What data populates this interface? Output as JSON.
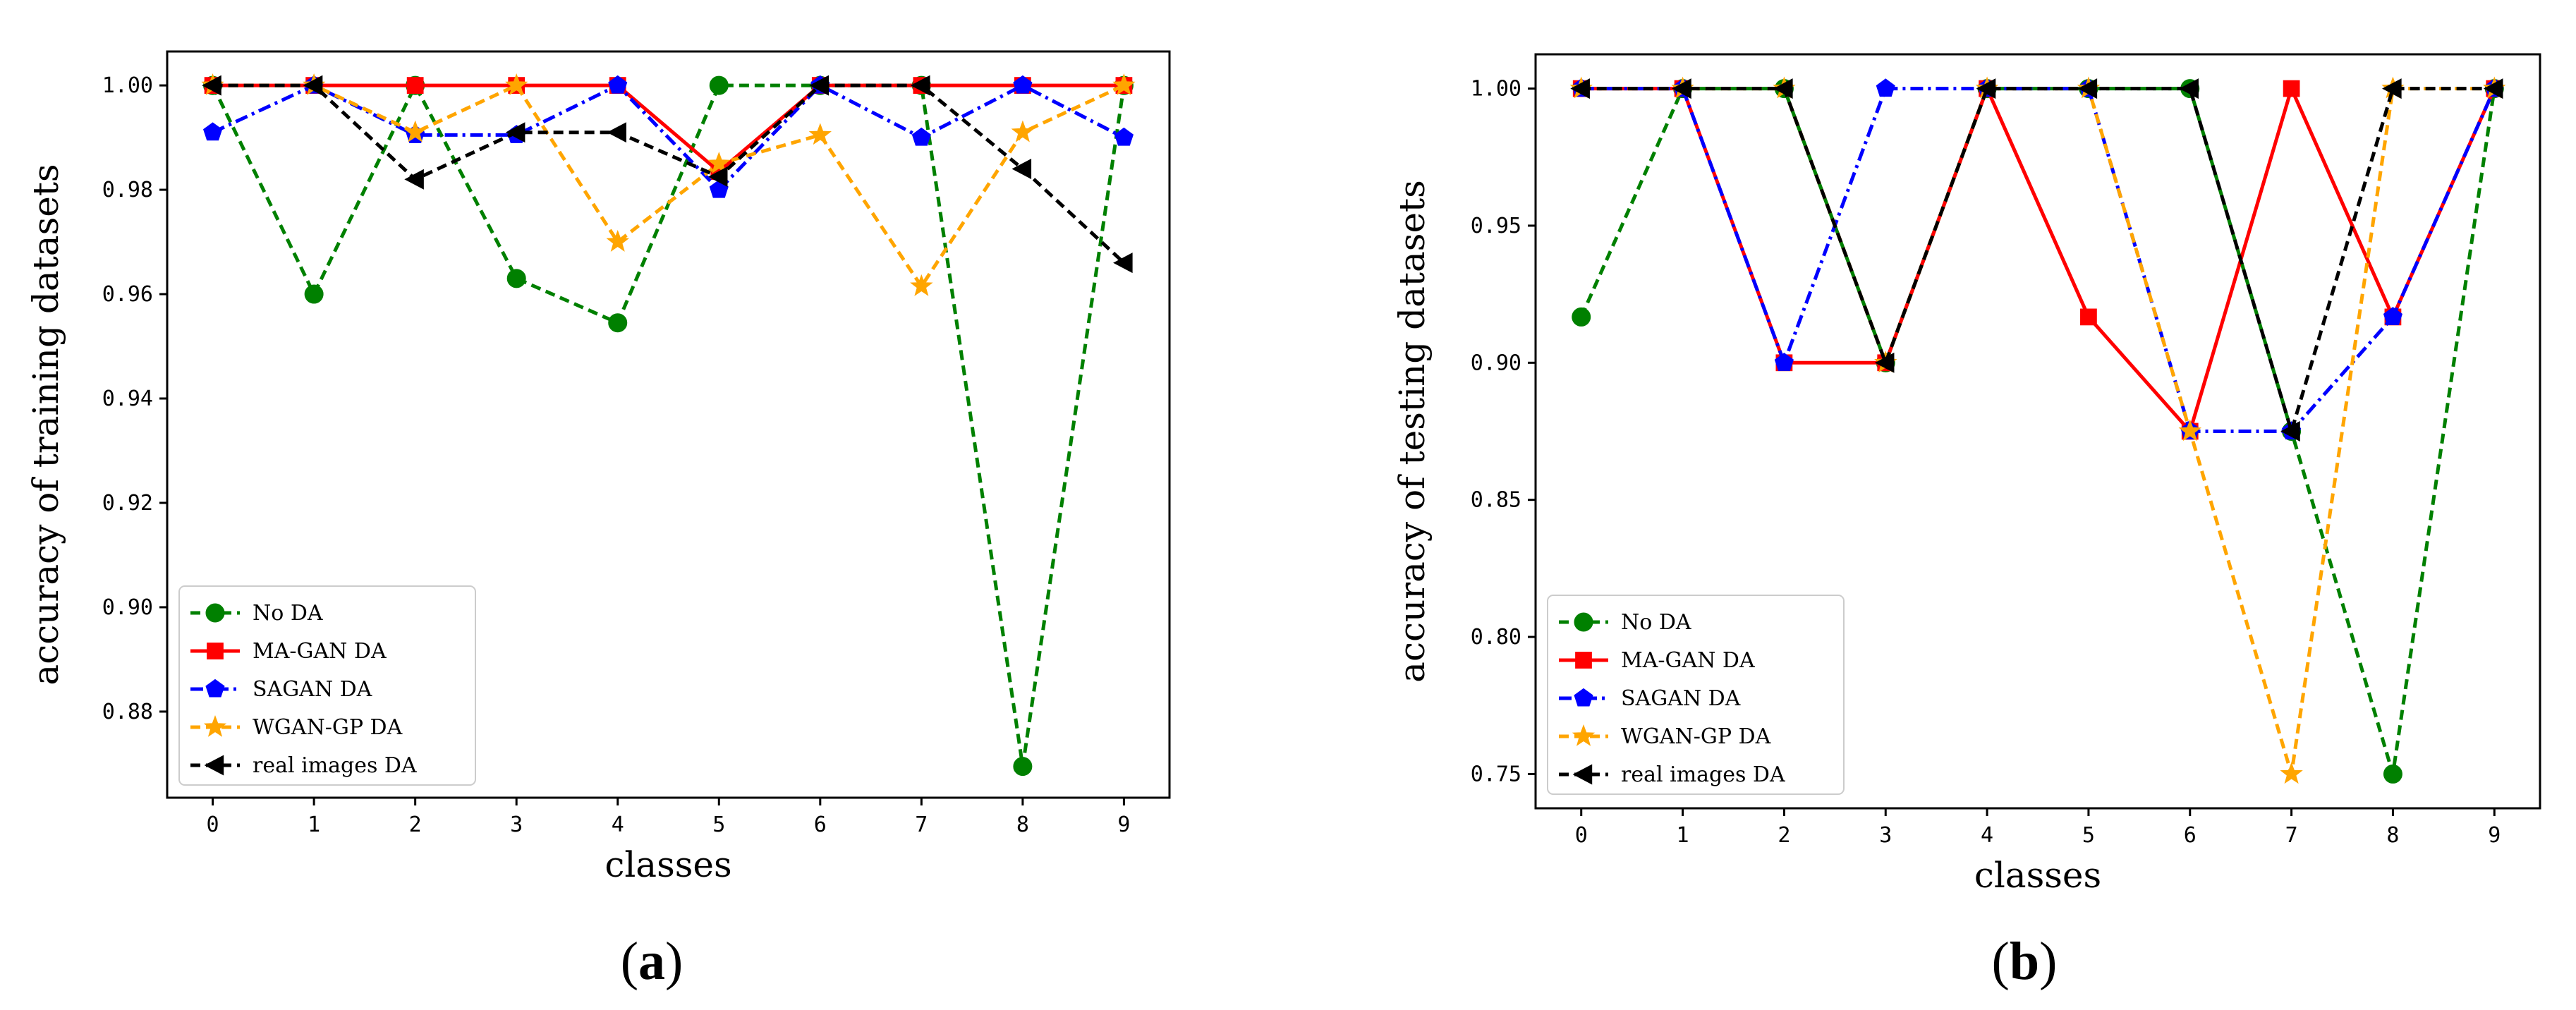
{
  "chart_data": [
    {
      "type": "line",
      "panel": "a",
      "panel_label": "a",
      "xlabel": "classes",
      "ylabel": "accuracy of training datasets",
      "categories": [
        0,
        1,
        2,
        3,
        4,
        5,
        6,
        7,
        8,
        9
      ],
      "xticks": [
        "0",
        "1",
        "2",
        "3",
        "4",
        "5",
        "6",
        "7",
        "8",
        "9"
      ],
      "xlim": [
        -0.45,
        9.45
      ],
      "ylim": [
        0.8635,
        1.0065
      ],
      "yticks": [
        "0.88",
        "0.90",
        "0.92",
        "0.94",
        "0.96",
        "0.98",
        "1.00"
      ],
      "legend_position": "lower-left",
      "series": [
        {
          "name": "No DA",
          "values": [
            1.0,
            0.96,
            1.0,
            0.963,
            0.9545,
            1.0,
            1.0,
            1.0,
            0.8695,
            1.0
          ],
          "color": "#008000",
          "dash": "dashed",
          "marker": "circle"
        },
        {
          "name": "MA-GAN DA",
          "values": [
            1.0,
            1.0,
            1.0,
            1.0,
            1.0,
            0.9835,
            1.0,
            1.0,
            1.0,
            1.0
          ],
          "color": "#ff0000",
          "dash": "solid",
          "marker": "square"
        },
        {
          "name": "SAGAN DA",
          "values": [
            0.991,
            1.0,
            0.9905,
            0.9905,
            1.0,
            0.98,
            1.0,
            0.99,
            1.0,
            0.99
          ],
          "color": "#0000ff",
          "dash": "dashdot",
          "marker": "pentagon"
        },
        {
          "name": "WGAN-GP DA",
          "values": [
            1.0,
            1.0,
            0.991,
            1.0,
            0.97,
            0.985,
            0.9905,
            0.9615,
            0.991,
            1.0
          ],
          "color": "#ffa500",
          "dash": "dashed",
          "marker": "star"
        },
        {
          "name": "real images DA",
          "values": [
            1.0,
            1.0,
            0.982,
            0.991,
            0.991,
            0.9825,
            1.0,
            1.0,
            0.984,
            0.966
          ],
          "color": "#000000",
          "dash": "dashed",
          "marker": "triangle-left"
        }
      ]
    },
    {
      "type": "line",
      "panel": "b",
      "panel_label": "b",
      "xlabel": "classes",
      "ylabel": "accuracy of testing datasets",
      "categories": [
        0,
        1,
        2,
        3,
        4,
        5,
        6,
        7,
        8,
        9
      ],
      "xticks": [
        "0",
        "1",
        "2",
        "3",
        "4",
        "5",
        "6",
        "7",
        "8",
        "9"
      ],
      "xlim": [
        -0.45,
        9.45
      ],
      "ylim": [
        0.7375,
        1.0125
      ],
      "yticks": [
        "0.75",
        "0.80",
        "0.85",
        "0.90",
        "0.95",
        "1.00"
      ],
      "legend_position": "lower-left",
      "series": [
        {
          "name": "No DA",
          "values": [
            0.9167,
            1.0,
            1.0,
            0.9,
            1.0,
            1.0,
            1.0,
            0.875,
            0.75,
            1.0
          ],
          "color": "#008000",
          "dash": "dashed",
          "marker": "circle"
        },
        {
          "name": "MA-GAN DA",
          "values": [
            1.0,
            1.0,
            0.9,
            0.9,
            1.0,
            0.9167,
            0.875,
            1.0,
            0.9167,
            1.0
          ],
          "color": "#ff0000",
          "dash": "solid",
          "marker": "square"
        },
        {
          "name": "SAGAN DA",
          "values": [
            1.0,
            1.0,
            0.9,
            1.0,
            1.0,
            1.0,
            0.875,
            0.875,
            0.9167,
            1.0
          ],
          "color": "#0000ff",
          "dash": "dashdot",
          "marker": "pentagon"
        },
        {
          "name": "WGAN-GP DA",
          "values": [
            1.0,
            1.0,
            1.0,
            0.9,
            1.0,
            1.0,
            0.875,
            0.75,
            1.0,
            1.0
          ],
          "color": "#ffa500",
          "dash": "dashed",
          "marker": "star"
        },
        {
          "name": "real images DA",
          "values": [
            1.0,
            1.0,
            1.0,
            0.9,
            1.0,
            1.0,
            1.0,
            0.875,
            1.0,
            1.0
          ],
          "color": "#000000",
          "dash": "dashed",
          "marker": "triangle-left"
        }
      ]
    }
  ]
}
